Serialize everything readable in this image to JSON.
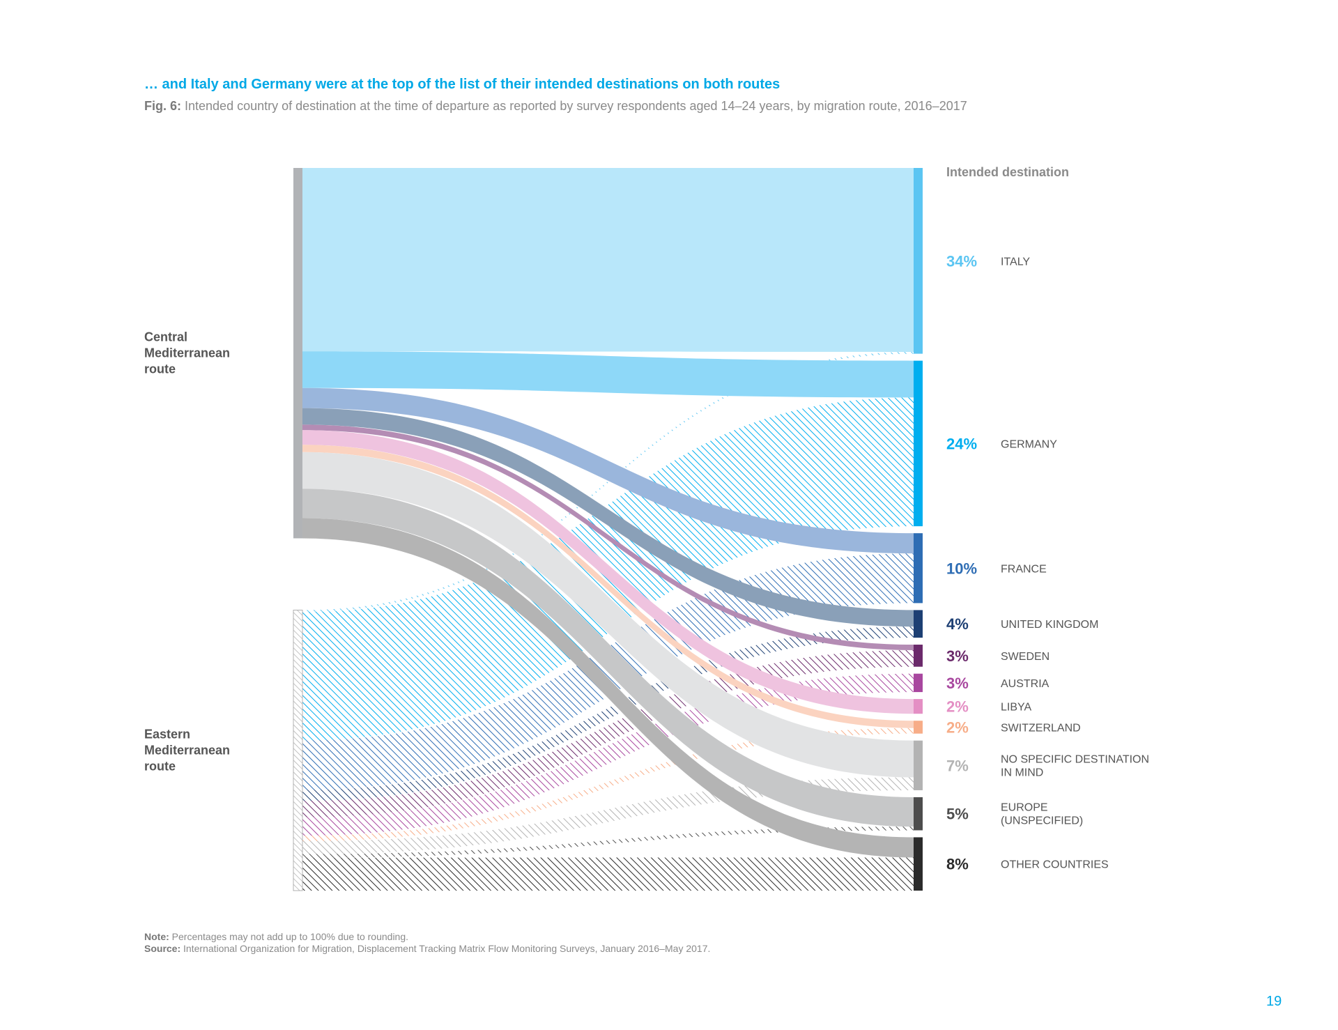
{
  "heading": "… and Italy and Germany were at the top of the list of their intended destinations on both routes",
  "subtitle": {
    "fig_label": "Fig. 6:",
    "text": "Intended country of destination at the time of departure as reported by survey respondents aged 14–24 years, by migration route, 2016–2017"
  },
  "chart_data": {
    "type": "sankey",
    "legend_title": "Intended destination",
    "sources": [
      {
        "id": "central",
        "label": [
          "Central",
          "Mediterranean",
          "route"
        ]
      },
      {
        "id": "eastern",
        "label": [
          "Eastern",
          "Mediterranean",
          "route"
        ]
      }
    ],
    "destinations": [
      {
        "name": "ITALY",
        "pct": "34%",
        "color": "#5bc5f2",
        "flow_color": "#b8e7fa",
        "from_central": 100,
        "from_eastern": 1
      },
      {
        "name": "GERMANY",
        "pct": "24%",
        "color": "#00aeef",
        "flow_color": "#8ed8f8",
        "from_central": 20,
        "from_eastern": 70
      },
      {
        "name": "FRANCE",
        "pct": "10%",
        "color": "#2e6db4",
        "flow_color": "#9ab6dc",
        "from_central": 11,
        "from_eastern": 27
      },
      {
        "name": "UNITED KINGDOM",
        "pct": "4%",
        "color": "#1d3f73",
        "flow_color": "#8aa0b8",
        "from_central": 9,
        "from_eastern": 6
      },
      {
        "name": "SWEDEN",
        "pct": "3%",
        "color": "#6b2a6b",
        "flow_color": "#b48cb4",
        "from_central": 3,
        "from_eastern": 9
      },
      {
        "name": "AUSTRIA",
        "pct": "3%",
        "color": "#a8479f",
        "flow_color": "#e9c4e4",
        "from_central": 0,
        "from_eastern": 10
      },
      {
        "name": "LIBYA",
        "pct": "2%",
        "color": "#e48fc4",
        "flow_color": "#efc3df",
        "from_central": 8,
        "from_eastern": 0
      },
      {
        "name": "SWITZERLAND",
        "pct": "2%",
        "color": "#f7ad88",
        "flow_color": "#fbd3c0",
        "from_central": 4,
        "from_eastern": 3
      },
      {
        "name": "NO SPECIFIC DESTINATION IN MIND",
        "pct": "7%",
        "color": "#b3b3b3",
        "flow_color": "#e2e3e4",
        "from_central": 20,
        "from_eastern": 7
      },
      {
        "name": "EUROPE (UNSPECIFIED)",
        "pct": "5%",
        "color": "#4d4d4d",
        "flow_color": "#c6c7c8",
        "from_central": 16,
        "from_eastern": 2
      },
      {
        "name": "OTHER COUNTRIES",
        "pct": "8%",
        "color": "#2b2b2b",
        "flow_color": "#b4b4b4",
        "from_central": 11,
        "from_eastern": 18
      }
    ]
  },
  "notes": {
    "note_label": "Note:",
    "note_text": "Percentages may not add up to 100% due to rounding.",
    "source_label": "Source:",
    "source_text": "International Organization for Migration, Displacement Tracking Matrix Flow Monitoring Surveys, January 2016–May 2017."
  },
  "page_number": "19"
}
